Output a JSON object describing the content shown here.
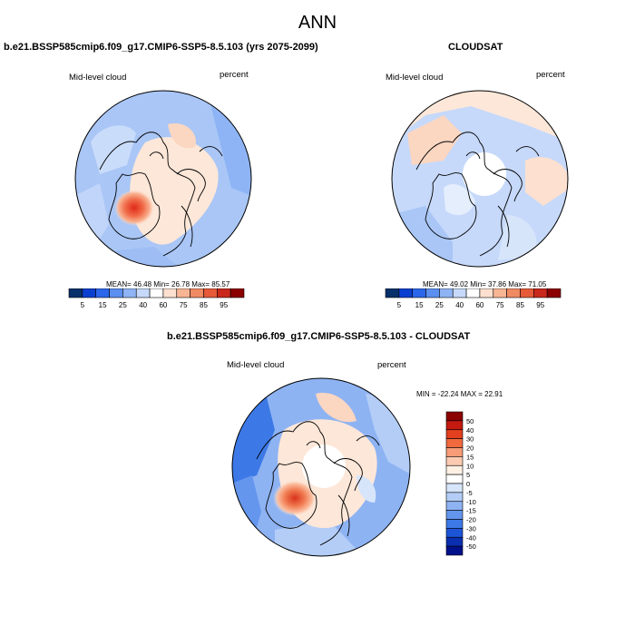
{
  "figure": {
    "title": "ANN"
  },
  "colors": {
    "abs_scale": [
      "#08306b",
      "#0b3fcf",
      "#2c66ea",
      "#5b8ff0",
      "#8fb4f5",
      "#c6d9fa",
      "#ffffff",
      "#fde0cf",
      "#f8b594",
      "#f08a63",
      "#e65a3a",
      "#c9281c",
      "#8b0000"
    ],
    "diff_scale": [
      "#8b0000",
      "#c41a10",
      "#e2401f",
      "#f06a3e",
      "#f79c77",
      "#fbcab0",
      "#fff0e4",
      "#ffffff",
      "#d7e5fb",
      "#b3cdf7",
      "#8eb3f3",
      "#6496ee",
      "#3c79e6",
      "#1d55d8",
      "#0a2fb0",
      "#00108a"
    ],
    "coast": "#000000",
    "pole_hole": "#ffffff"
  },
  "chart_data": [
    {
      "type": "heatmap",
      "projection": "north-polar-stereographic",
      "title": "b.e21.BSSP585cmip6.f09_g17.CMIP6-SSP5-8.5.103 (yrs 2075-2099)",
      "variable": "Mid-level cloud",
      "units": "percent",
      "stats": {
        "label": "MEAN=  46.48  Min=  26.78  Max=  85.57",
        "mean": 46.48,
        "min": 26.78,
        "max": 85.57
      },
      "colorbar": {
        "orientation": "horizontal",
        "tick_labels": [
          "5",
          "15",
          "25",
          "40",
          "60",
          "75",
          "85",
          "95"
        ]
      }
    },
    {
      "type": "heatmap",
      "projection": "north-polar-stereographic",
      "title": "CLOUDSAT",
      "variable": "Mid-level cloud",
      "units": "percent",
      "stats": {
        "label": "MEAN=  49.02  Min=  37.86  Max=  71.05",
        "mean": 49.02,
        "min": 37.86,
        "max": 71.05
      },
      "colorbar": {
        "orientation": "horizontal",
        "tick_labels": [
          "5",
          "15",
          "25",
          "40",
          "60",
          "75",
          "85",
          "95"
        ]
      }
    },
    {
      "type": "heatmap",
      "projection": "north-polar-stereographic",
      "title": "b.e21.BSSP585cmip6.f09_g17.CMIP6-SSP5-8.5.103 - CLOUDSAT",
      "variable": "Mid-level cloud",
      "units": "percent",
      "stats": {
        "label": "MIN = -22.24 MAX =  22.91",
        "min": -22.24,
        "max": 22.91
      },
      "colorbar": {
        "orientation": "vertical",
        "tick_labels": [
          "50",
          "40",
          "30",
          "20",
          "15",
          "10",
          "5",
          "0",
          "-5",
          "-10",
          "-15",
          "-20",
          "-30",
          "-40",
          "-50"
        ]
      }
    }
  ]
}
